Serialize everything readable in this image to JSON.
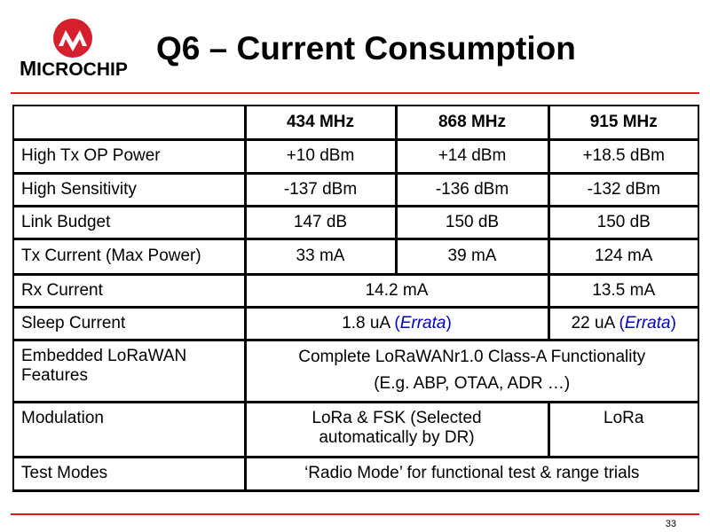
{
  "logo": {
    "text_big": "M",
    "text_rest": "ICROCHIP",
    "brand_color": "#d5202e"
  },
  "slide": {
    "title": "Q6 – Current Consumption",
    "page_number": "33"
  },
  "colors": {
    "rule": "#e01b1b",
    "errata": "#0000c0"
  },
  "table": {
    "headers": [
      "",
      "434 MHz",
      "868 MHz",
      "915 MHz"
    ],
    "rows": {
      "high_tx": {
        "label": "High Tx OP Power",
        "c1": "+10 dBm",
        "c2": "+14 dBm",
        "c3": "+18.5 dBm"
      },
      "high_sens": {
        "label": "High Sensitivity",
        "c1": "-137 dBm",
        "c2": "-136 dBm",
        "c3": "-132 dBm"
      },
      "link_budget": {
        "label": "Link Budget",
        "c1": "147 dB",
        "c2": "150 dB",
        "c3": "150 dB"
      },
      "tx_current": {
        "label": "Tx Current (Max Power)",
        "c1": "33 mA",
        "c2": "39 mA",
        "c3": "124 mA"
      },
      "rx_current": {
        "label": "Rx Current",
        "c12": "14.2 mA",
        "c3": "13.5 mA"
      },
      "sleep_current": {
        "label": "Sleep Current",
        "c12_value": "1.8 uA ",
        "c3_value": "22 uA ",
        "paren_open": "(",
        "errata": "Errata",
        "paren_close": ")"
      },
      "embedded": {
        "label": "Embedded LoRaWAN Features",
        "line1": "Complete LoRaWANr1.0 Class-A Functionality",
        "line2": "(E.g. ABP, OTAA, ADR …)"
      },
      "modulation": {
        "label": "Modulation",
        "c12": "LoRa & FSK (Selected automatically by DR)",
        "c3": "LoRa"
      },
      "test_modes": {
        "label": "Test Modes",
        "c123": "‘Radio Mode’ for functional test & range trials"
      }
    }
  }
}
